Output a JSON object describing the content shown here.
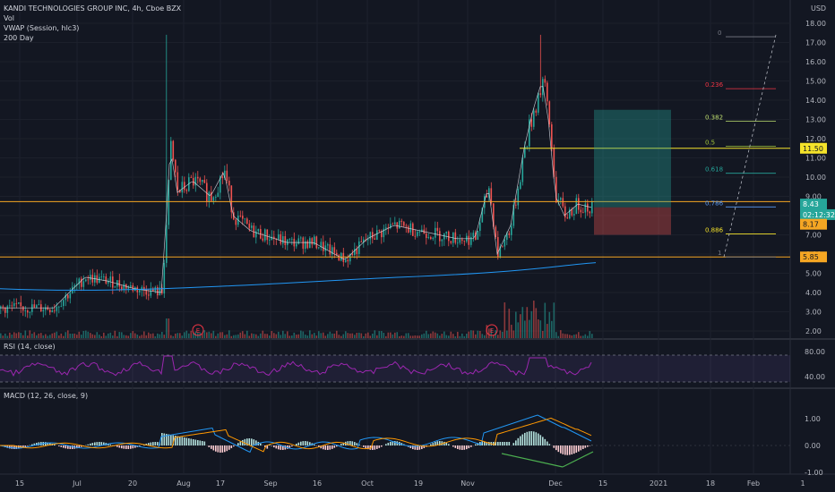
{
  "header": {
    "symbol_title": "KANDI TECHNOLOGIES GROUP INC, 4h, Cboe BZX",
    "indicators": [
      "Vol",
      "VWAP (Session, hlc3)",
      "200 Day"
    ]
  },
  "price_axis": {
    "currency": "USD",
    "ticks": [
      "18.00",
      "17.00",
      "16.00",
      "15.00",
      "14.00",
      "13.00",
      "12.00",
      "11.00",
      "10.00",
      "9.00",
      "8.00",
      "7.00",
      "6.00",
      "5.00",
      "4.00",
      "3.00",
      "2.00"
    ],
    "price_labels": [
      {
        "text": "11.50",
        "bg": "#f5e32a",
        "fg": "#131722"
      },
      {
        "text": "8.43",
        "bg": "#26a69a",
        "fg": "#ffffff"
      },
      {
        "text": "02:12:32",
        "bg": "#26a69a",
        "fg": "#ffffff"
      },
      {
        "text": "8.17",
        "bg": "#f5a623",
        "fg": "#131722"
      },
      {
        "text": "5.85",
        "bg": "#f5a623",
        "fg": "#131722"
      }
    ]
  },
  "fib_levels": [
    {
      "label": "0",
      "color": "#787b86"
    },
    {
      "label": "0.236",
      "color": "#f23645"
    },
    {
      "label": "0.382",
      "color": "#c0e070"
    },
    {
      "label": "0.5",
      "color": "#a4c73a"
    },
    {
      "label": "0.618",
      "color": "#26a69a"
    },
    {
      "label": "0.786",
      "color": "#5b9cf6"
    },
    {
      "label": "0.886",
      "color": "#f5e32a"
    },
    {
      "label": "1",
      "color": "#787b86"
    }
  ],
  "earnings_markers": [
    "E",
    "E"
  ],
  "rsi": {
    "title": "RSI (14, close)",
    "ticks": [
      "80.00",
      "40.00"
    ]
  },
  "macd": {
    "title": "MACD (12, 26, close, 9)",
    "ticks": [
      "1.00",
      "0.00",
      "-1.00"
    ]
  },
  "time_axis": {
    "labels": [
      "15",
      "Jul",
      "20",
      "Aug",
      "17",
      "Sep",
      "16",
      "Oct",
      "19",
      "Nov",
      "Dec",
      "15",
      "2021",
      "18",
      "Feb",
      "1"
    ]
  },
  "colors": {
    "background": "#131722",
    "up": "#26a69a",
    "down": "#ef5350",
    "horizontal_line_yellow": "#f5e32a",
    "horizontal_line_orange": "#f5a623",
    "ma_line": "#2196f3",
    "rsi_line": "#9c27b0",
    "macd_line": "#2196f3",
    "signal_line": "#ff9800",
    "divergence_line": "#4caf50"
  }
}
